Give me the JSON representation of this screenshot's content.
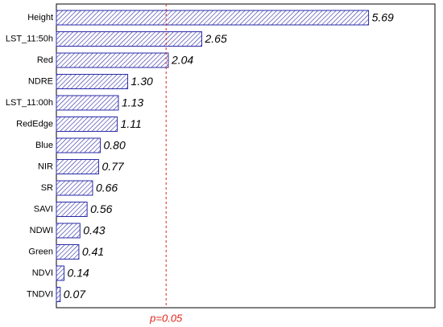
{
  "chart_data": {
    "type": "bar",
    "orientation": "horizontal",
    "categories": [
      "Height",
      "LST_11:50h",
      "Red",
      "NDRE",
      "LST_11:00h",
      "RedEdge",
      "Blue",
      "NIR",
      "SR",
      "SAVI",
      "NDWI",
      "Green",
      "NDVI",
      "TNDVI"
    ],
    "values": [
      5.69,
      2.65,
      2.04,
      1.3,
      1.13,
      1.11,
      0.8,
      0.77,
      0.66,
      0.56,
      0.43,
      0.41,
      0.14,
      0.07
    ],
    "value_labels": [
      "5.69",
      "2.65",
      "2.04",
      "1.30",
      "1.13",
      "1.11",
      "0.80",
      "0.77",
      "0.66",
      "0.56",
      "0.43",
      "0.41",
      "0.14",
      "0.07"
    ],
    "color": "#2a2aa8",
    "xlim": [
      0,
      6.9
    ],
    "reference_line": {
      "value": 2.0,
      "label": "p=0.05",
      "color": "#e0241b"
    }
  }
}
